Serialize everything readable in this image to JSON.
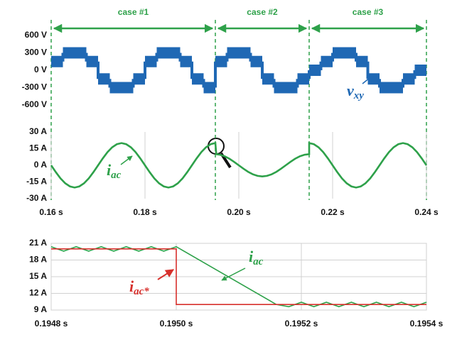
{
  "chart_data": [
    {
      "type": "step",
      "xlim": [
        0.16,
        0.24
      ],
      "ylim": [
        -600,
        600
      ],
      "yticks": [
        {
          "value": 600,
          "label": "600 V"
        },
        {
          "value": 300,
          "label": "300 V"
        },
        {
          "value": 0,
          "label": "0 V"
        },
        {
          "value": -300,
          "label": "-300 V"
        },
        {
          "value": -600,
          "label": "-600 V"
        }
      ],
      "cases": [
        {
          "label": "case #1",
          "start": 0.16,
          "end": 0.195
        },
        {
          "label": "case #2",
          "start": 0.195,
          "end": 0.215
        },
        {
          "label": "case #3",
          "start": 0.215,
          "end": 0.24
        }
      ],
      "case_color": "#2ea14a",
      "x": [
        0.16,
        0.1625,
        0.165,
        0.1675,
        0.17,
        0.1725,
        0.175,
        0.1775,
        0.18,
        0.1825,
        0.185,
        0.1875,
        0.19,
        0.1925,
        0.195,
        0.1975,
        0.2,
        0.2025,
        0.205,
        0.2075,
        0.21,
        0.2125,
        0.215,
        0.2175,
        0.22,
        0.2225,
        0.225,
        0.2275,
        0.23,
        0.2325,
        0.235,
        0.2375
      ],
      "series": [
        {
          "name": "v",
          "name_sub": "xy",
          "color": "#1f68b4",
          "values": [
            150,
            300,
            300,
            150,
            -150,
            -300,
            -300,
            -150,
            150,
            300,
            300,
            150,
            -150,
            -300,
            150,
            300,
            300,
            150,
            -150,
            -300,
            -300,
            -150,
            0,
            150,
            300,
            300,
            150,
            -150,
            -300,
            -300,
            -150,
            0
          ]
        }
      ]
    },
    {
      "type": "line",
      "xlim": [
        0.16,
        0.24
      ],
      "xticks": [
        {
          "value": 0.16,
          "label": "0.16 s"
        },
        {
          "value": 0.18,
          "label": "0.18 s"
        },
        {
          "value": 0.2,
          "label": "0.20 s"
        },
        {
          "value": 0.22,
          "label": "0.22 s"
        },
        {
          "value": 0.24,
          "label": "0.24 s"
        }
      ],
      "ylim": [
        -30,
        30
      ],
      "yticks": [
        {
          "value": 30,
          "label": "30 A"
        },
        {
          "value": 15,
          "label": "15 A"
        },
        {
          "value": 0,
          "label": "0 A"
        },
        {
          "value": -15,
          "label": "-15 A"
        },
        {
          "value": -30,
          "label": "-30 A"
        }
      ],
      "grid": "x",
      "x": [
        0.16,
        0.161,
        0.162,
        0.163,
        0.164,
        0.165,
        0.166,
        0.167,
        0.168,
        0.169,
        0.17,
        0.171,
        0.172,
        0.173,
        0.174,
        0.175,
        0.176,
        0.177,
        0.178,
        0.179,
        0.18,
        0.181,
        0.182,
        0.183,
        0.184,
        0.185,
        0.186,
        0.187,
        0.188,
        0.189,
        0.19,
        0.191,
        0.192,
        0.193,
        0.194,
        0.195,
        0.1952,
        0.196,
        0.197,
        0.198,
        0.199,
        0.2,
        0.201,
        0.202,
        0.203,
        0.204,
        0.205,
        0.206,
        0.207,
        0.208,
        0.209,
        0.21,
        0.211,
        0.212,
        0.213,
        0.214,
        0.215,
        0.215,
        0.216,
        0.217,
        0.218,
        0.219,
        0.22,
        0.221,
        0.222,
        0.223,
        0.224,
        0.225,
        0.226,
        0.227,
        0.228,
        0.229,
        0.23,
        0.231,
        0.232,
        0.233,
        0.234,
        0.235,
        0.236,
        0.237,
        0.238,
        0.239,
        0.24
      ],
      "series": [
        {
          "name": "i",
          "name_sub": "ac",
          "color": "#2ea14a",
          "values": [
            0,
            -6.2,
            -11.8,
            -16.2,
            -19,
            -20,
            -19,
            -16.2,
            -11.8,
            -6.2,
            0,
            6.2,
            11.8,
            16.2,
            19,
            20,
            19,
            16.2,
            11.8,
            6.2,
            0,
            -6.2,
            -11.8,
            -16.2,
            -19,
            -20,
            -19,
            -16.2,
            -11.8,
            -6.2,
            0,
            6.2,
            11.8,
            16.2,
            19,
            20,
            10,
            9.5,
            8.1,
            5.9,
            3.1,
            0,
            -3.1,
            -5.9,
            -8.1,
            -9.5,
            -10,
            -9.5,
            -8.1,
            -5.9,
            -3.1,
            0,
            3.1,
            5.9,
            8.1,
            9.5,
            10,
            20,
            19,
            16.2,
            11.8,
            6.2,
            0,
            -6.2,
            -11.8,
            -16.2,
            -19,
            -20,
            -19,
            -16.2,
            -11.8,
            -6.2,
            0,
            6.2,
            11.8,
            16.2,
            19,
            20,
            19,
            16.2,
            11.8,
            6.2,
            0
          ]
        }
      ]
    },
    {
      "type": "line",
      "xlim": [
        0.1948,
        0.1954
      ],
      "xticks": [
        {
          "value": 0.1948,
          "label": "0.1948 s"
        },
        {
          "value": 0.195,
          "label": "0.1950 s"
        },
        {
          "value": 0.1952,
          "label": "0.1952 s"
        },
        {
          "value": 0.1954,
          "label": "0.1954 s"
        }
      ],
      "ylim": [
        9,
        21
      ],
      "yticks": [
        {
          "value": 21,
          "label": "21 A"
        },
        {
          "value": 18,
          "label": "18 A"
        },
        {
          "value": 15,
          "label": "15 A"
        },
        {
          "value": 12,
          "label": "12 A"
        },
        {
          "value": 9,
          "label": "9 A"
        }
      ],
      "grid": "both",
      "series": [
        {
          "name": "i",
          "name_sub": "ac",
          "color": "#2ea14a",
          "x": [
            0.1948,
            0.19482,
            0.19484,
            0.19486,
            0.19488,
            0.1949,
            0.19492,
            0.19494,
            0.19496,
            0.19498,
            0.195,
            0.19516,
            0.19518,
            0.1952,
            0.19522,
            0.19524,
            0.19526,
            0.19528,
            0.1953,
            0.19532,
            0.19534,
            0.19536,
            0.19538,
            0.1954
          ],
          "values": [
            20.4,
            19.6,
            20.4,
            19.6,
            20.4,
            19.6,
            20.4,
            19.6,
            20.4,
            19.6,
            20.4,
            10,
            9.6,
            10.4,
            9.6,
            10.4,
            9.6,
            10.4,
            9.6,
            10.4,
            9.6,
            10.4,
            9.6,
            10.4
          ]
        },
        {
          "name": "i",
          "name_sub": "ac*",
          "color": "#d7302c",
          "x": [
            0.1948,
            0.195,
            0.195,
            0.1954
          ],
          "values": [
            20,
            20,
            10,
            10
          ]
        }
      ]
    }
  ]
}
